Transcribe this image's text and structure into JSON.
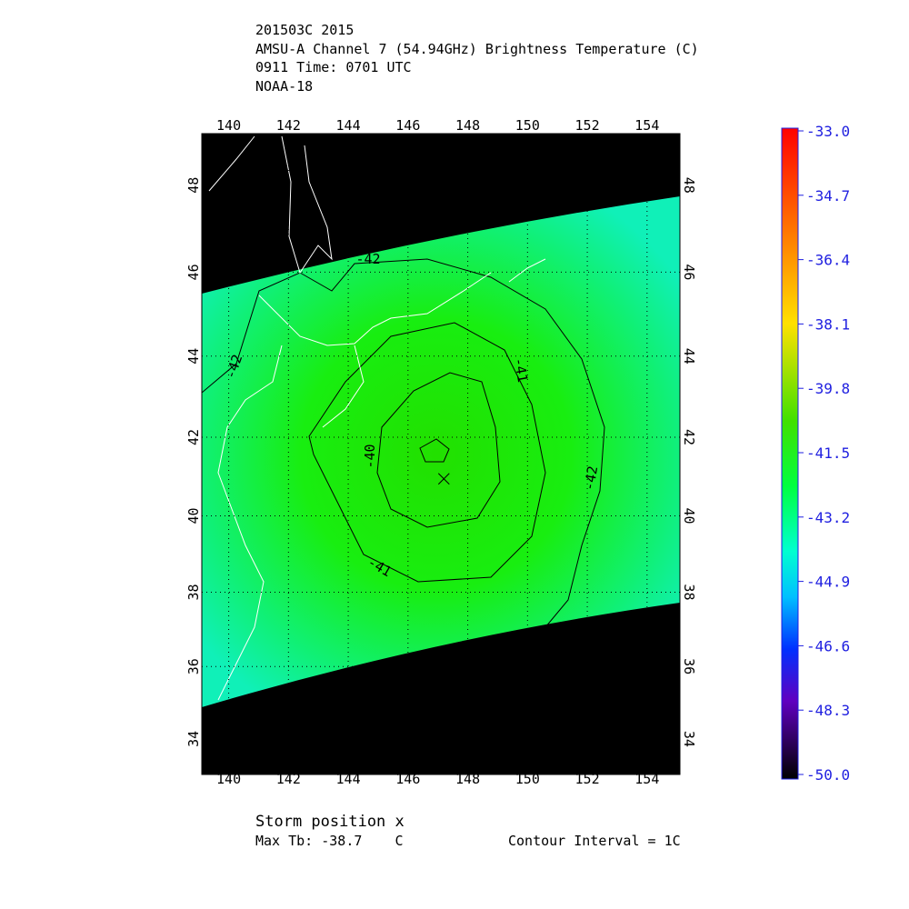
{
  "header": {
    "lines": [
      "201503C 2015",
      "AMSU-A Channel 7 (54.94GHz) Brightness Temperature (C)",
      "0911 Time: 0701 UTC",
      "NOAA-18"
    ]
  },
  "map": {
    "lonlim": [
      139.1,
      155.1
    ],
    "latlim": [
      33,
      49.15
    ],
    "lonticks": [
      140,
      142,
      144,
      146,
      148,
      150,
      152,
      154
    ],
    "latticks": [
      34,
      36,
      38,
      40,
      42,
      44,
      46,
      48
    ],
    "grid": true,
    "storm": {
      "lon": 147.2,
      "lat": 40.95
    },
    "contour_labels": [
      "-42",
      "-42",
      "-41",
      "-41",
      "-40",
      "-42"
    ]
  },
  "colorbar": {
    "range": [
      -50,
      -33
    ],
    "ticks": [
      {
        "value": -33,
        "label": "-33.0"
      },
      {
        "value": -34.7,
        "label": "-34.7"
      },
      {
        "value": -36.4,
        "label": "-36.4"
      },
      {
        "value": -38.1,
        "label": "-38.1"
      },
      {
        "value": -39.8,
        "label": "-39.8"
      },
      {
        "value": -41.5,
        "label": "-41.5"
      },
      {
        "value": -43.2,
        "label": "-43.2"
      },
      {
        "value": -44.9,
        "label": "-44.9"
      },
      {
        "value": -46.6,
        "label": "-46.6"
      },
      {
        "value": -48.3,
        "label": "-48.3"
      },
      {
        "value": -50,
        "label": "-50.0"
      }
    ]
  },
  "footer": {
    "storm_note": "Storm position x",
    "max_tb": "Max Tb: -38.7    C",
    "contour_interval": "Contour Interval = 1C"
  }
}
